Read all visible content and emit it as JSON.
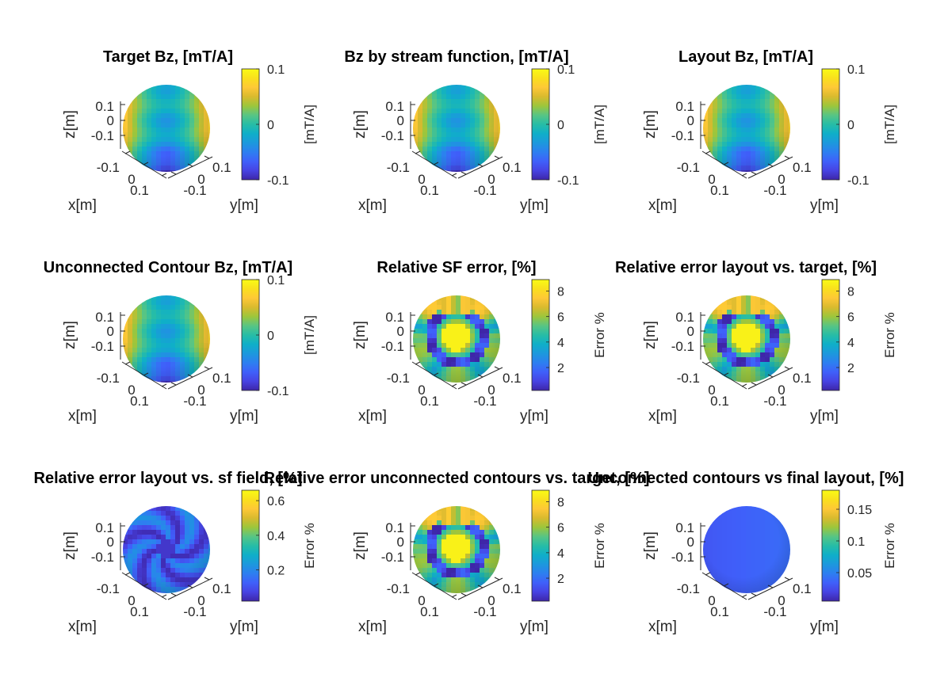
{
  "chart_data": [
    {
      "type": "heatmap",
      "title": "Target Bz, [mT/A]",
      "pattern": "field",
      "xlabel": "x[m]",
      "ylabel": "y[m]",
      "zlabel": "z[m]",
      "x_ticks": [
        "-0.1",
        "0",
        "0.1"
      ],
      "y_ticks": [
        "0.1",
        "0",
        "-0.1"
      ],
      "z_ticks": [
        "0.1",
        "0",
        "-0.1"
      ],
      "colorbar": {
        "label": "[mT/A]",
        "range": [
          -0.1,
          0.1
        ],
        "ticks": [
          {
            "v": 0.1,
            "label": "0.1"
          },
          {
            "v": 0,
            "label": "0"
          },
          {
            "v": -0.1,
            "label": "-0.1"
          }
        ]
      }
    },
    {
      "type": "heatmap",
      "title": "Bz by stream function, [mT/A]",
      "pattern": "field",
      "xlabel": "x[m]",
      "ylabel": "y[m]",
      "zlabel": "z[m]",
      "x_ticks": [
        "-0.1",
        "0",
        "0.1"
      ],
      "y_ticks": [
        "0.1",
        "0",
        "-0.1"
      ],
      "z_ticks": [
        "0.1",
        "0",
        "-0.1"
      ],
      "colorbar": {
        "label": "[mT/A]",
        "range": [
          -0.1,
          0.1
        ],
        "ticks": [
          {
            "v": 0.1,
            "label": "0.1"
          },
          {
            "v": 0,
            "label": "0"
          },
          {
            "v": -0.1,
            "label": "-0.1"
          }
        ]
      }
    },
    {
      "type": "heatmap",
      "title": "Layout Bz, [mT/A]",
      "pattern": "field",
      "xlabel": "x[m]",
      "ylabel": "y[m]",
      "zlabel": "z[m]",
      "x_ticks": [
        "-0.1",
        "0",
        "0.1"
      ],
      "y_ticks": [
        "0.1",
        "0",
        "-0.1"
      ],
      "z_ticks": [
        "0.1",
        "0",
        "-0.1"
      ],
      "colorbar": {
        "label": "[mT/A]",
        "range": [
          -0.1,
          0.1
        ],
        "ticks": [
          {
            "v": 0.1,
            "label": "0.1"
          },
          {
            "v": 0,
            "label": "0"
          },
          {
            "v": -0.1,
            "label": "-0.1"
          }
        ]
      }
    },
    {
      "type": "heatmap",
      "title": "Unconnected Contour Bz, [mT/A]",
      "pattern": "field",
      "xlabel": "x[m]",
      "ylabel": "y[m]",
      "zlabel": "z[m]",
      "x_ticks": [
        "-0.1",
        "0",
        "0.1"
      ],
      "y_ticks": [
        "0.1",
        "0",
        "-0.1"
      ],
      "z_ticks": [
        "0.1",
        "0",
        "-0.1"
      ],
      "colorbar": {
        "label": "[mT/A]",
        "range": [
          -0.1,
          0.1
        ],
        "ticks": [
          {
            "v": 0.1,
            "label": "0.1"
          },
          {
            "v": 0,
            "label": "0"
          },
          {
            "v": -0.1,
            "label": "-0.1"
          }
        ]
      }
    },
    {
      "type": "heatmap",
      "title": "Relative SF error, [%]",
      "pattern": "error",
      "xlabel": "x[m]",
      "ylabel": "y[m]",
      "zlabel": "z[m]",
      "x_ticks": [
        "-0.1",
        "0",
        "0.1"
      ],
      "y_ticks": [
        "0.1",
        "0",
        "-0.1"
      ],
      "z_ticks": [
        "0.1",
        "0",
        "-0.1"
      ],
      "colorbar": {
        "label": "Error %",
        "range": [
          0.2,
          8.9
        ],
        "ticks": [
          {
            "v": 8,
            "label": "8"
          },
          {
            "v": 6,
            "label": "6"
          },
          {
            "v": 4,
            "label": "4"
          },
          {
            "v": 2,
            "label": "2"
          }
        ]
      }
    },
    {
      "type": "heatmap",
      "title": "Relative error layout vs. target, [%]",
      "pattern": "error",
      "xlabel": "x[m]",
      "ylabel": "y[m]",
      "zlabel": "z[m]",
      "x_ticks": [
        "-0.1",
        "0",
        "0.1"
      ],
      "y_ticks": [
        "0.1",
        "0",
        "-0.1"
      ],
      "z_ticks": [
        "0.1",
        "0",
        "-0.1"
      ],
      "colorbar": {
        "label": "Error %",
        "range": [
          0.2,
          8.9
        ],
        "ticks": [
          {
            "v": 8,
            "label": "8"
          },
          {
            "v": 6,
            "label": "6"
          },
          {
            "v": 4,
            "label": "4"
          },
          {
            "v": 2,
            "label": "2"
          }
        ]
      }
    },
    {
      "type": "heatmap",
      "title": "Relative error layout vs. sf field, [%]",
      "pattern": "swirl",
      "xlabel": "x[m]",
      "ylabel": "y[m]",
      "zlabel": "z[m]",
      "x_ticks": [
        "-0.1",
        "0",
        "0.1"
      ],
      "y_ticks": [
        "0.1",
        "0",
        "-0.1"
      ],
      "z_ticks": [
        "0.1",
        "0",
        "-0.1"
      ],
      "colorbar": {
        "label": "Error %",
        "range": [
          0.02,
          0.66
        ],
        "ticks": [
          {
            "v": 0.6,
            "label": "0.6"
          },
          {
            "v": 0.4,
            "label": "0.4"
          },
          {
            "v": 0.2,
            "label": "0.2"
          }
        ]
      }
    },
    {
      "type": "heatmap",
      "title": "Relative error unconnected contours vs. target, [%]",
      "pattern": "error",
      "xlabel": "x[m]",
      "ylabel": "y[m]",
      "zlabel": "z[m]",
      "x_ticks": [
        "-0.1",
        "0",
        "0.1"
      ],
      "y_ticks": [
        "0.1",
        "0",
        "-0.1"
      ],
      "z_ticks": [
        "0.1",
        "0",
        "-0.1"
      ],
      "colorbar": {
        "label": "Error %",
        "range": [
          0.2,
          8.9
        ],
        "ticks": [
          {
            "v": 8,
            "label": "8"
          },
          {
            "v": 6,
            "label": "6"
          },
          {
            "v": 4,
            "label": "4"
          },
          {
            "v": 2,
            "label": "2"
          }
        ]
      }
    },
    {
      "type": "heatmap",
      "title": "Unconnected contours vs final layout, [%]",
      "pattern": "flat",
      "xlabel": "x[m]",
      "ylabel": "y[m]",
      "zlabel": "z[m]",
      "x_ticks": [
        "-0.1",
        "0",
        "0.1"
      ],
      "y_ticks": [
        "0.1",
        "0",
        "-0.1"
      ],
      "z_ticks": [
        "0.1",
        "0",
        "-0.1"
      ],
      "colorbar": {
        "label": "Error %",
        "range": [
          0.005,
          0.18
        ],
        "ticks": [
          {
            "v": 0.15,
            "label": "0.15"
          },
          {
            "v": 0.1,
            "label": "0.1"
          },
          {
            "v": 0.05,
            "label": "0.05"
          }
        ]
      }
    }
  ],
  "colormap": [
    "#3e26a8",
    "#4743e3",
    "#3f60fa",
    "#2d7ff0",
    "#1c98dd",
    "#0fafc8",
    "#27bda6",
    "#58c584",
    "#9dc63b",
    "#d9ba2e",
    "#fec837",
    "#f9e01d",
    "#f9fb15"
  ]
}
